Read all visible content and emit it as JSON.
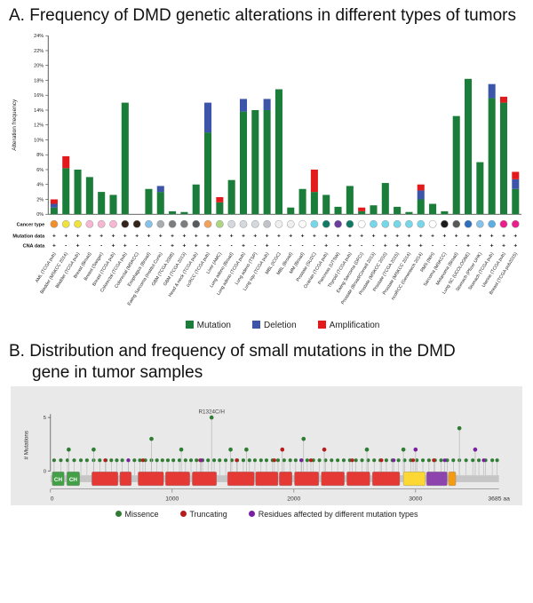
{
  "figure": {
    "panel_a_title": "A. Frequency of DMD genetic alterations in different types of tumors",
    "panel_b_title": "B. Distribution and frequency of small mutations in the DMD gene in tumor samples"
  },
  "chart_data": [
    {
      "id": "alteration-frequency",
      "type": "bar",
      "stacked": true,
      "ylabel": "Alteration frequency",
      "ylim": [
        0,
        24
      ],
      "ytick_step": 2,
      "ytick_suffix": "%",
      "row_labels": [
        "Cancer type",
        "Mutation data",
        "CNA data"
      ],
      "legend": [
        {
          "label": "Mutation",
          "color": "#1b7d3a"
        },
        {
          "label": "Deletion",
          "color": "#3c55a8"
        },
        {
          "label": "Amplification",
          "color": "#e31a1c"
        }
      ],
      "categories": [
        "AML (TCGA pub)",
        "Bladder (MSKCC 2014)",
        "Bladder (TCGA pub)",
        "Breast (Broad)",
        "Breast (Sanger)",
        "Breast (TCGA pub)",
        "Colorectal (TCGA pub)",
        "Colorectal (MSKCC)",
        "Esophagus (Broad)",
        "Ewing Sarcoma (Institut Curie)",
        "GBM (TCGA 2008)",
        "GBM (TCGA 2013)",
        "Head & neck (TCGA pub)",
        "ccRCC (TCGA pub)",
        "Liver (AMC)",
        "Lung adeno (Broad)",
        "Lung adeno (TCGA pub)",
        "Lung adeno (TSP)",
        "Lung squ (TCGA pub)",
        "MBL (ICGC)",
        "MBL (Broad)",
        "MM (Broad)",
        "Prostate (SU2C)",
        "Ovarian (TCGA pub)",
        "Pancreas (UTSW)",
        "Thyroid (TCGA pub)",
        "Ewing Sarcoma (DFCI)",
        "Prostate (Broad/Cornell 2013)",
        "Prostate (MSKCC 2010)",
        "Prostate (TCGA 2015)",
        "Prostate (MSKCC 2014)",
        "ncoRCC (Genentech 2014)",
        "RMS (NIH)",
        "Sarcoma (MSKCC)",
        "Melanoma (Broad)",
        "Lung SC (UCOLOGNE)",
        "Stomach (Pfizer UHK)",
        "Stomach (TCGA pub)",
        "Uterine (TCGA pub)",
        "Breast (TCGA pub2015)"
      ],
      "series": [
        {
          "name": "Mutation",
          "color": "#1b7d3a",
          "values": [
            0.9,
            6.2,
            6.0,
            5.0,
            3.0,
            2.6,
            15.0,
            0,
            3.4,
            3.0,
            0.4,
            0.3,
            4.0,
            11.0,
            1.6,
            4.6,
            13.8,
            14.0,
            14.0,
            16.8,
            0.9,
            3.4,
            3.0,
            2.6,
            1.0,
            3.8,
            0.4,
            1.2,
            4.2,
            1.0,
            0.3,
            2.0,
            1.4,
            0.4,
            13.2,
            18.2,
            7.0,
            15.6,
            15.0,
            3.4
          ]
        },
        {
          "name": "Deletion",
          "color": "#3c55a8",
          "values": [
            0.5,
            0,
            0,
            0,
            0,
            0,
            0,
            0,
            0,
            0.8,
            0,
            0,
            0,
            4.0,
            0,
            0,
            1.7,
            0,
            1.5,
            0,
            0,
            0,
            0,
            0,
            0,
            0,
            0,
            0,
            0,
            0,
            0,
            1.2,
            0,
            0,
            0,
            0,
            0,
            1.9,
            0,
            1.3
          ]
        },
        {
          "name": "Amplification",
          "color": "#e31a1c",
          "values": [
            0.6,
            1.6,
            0,
            0,
            0,
            0,
            0,
            0,
            0,
            0,
            0,
            0,
            0,
            0,
            0.7,
            0,
            0,
            0,
            0,
            0,
            0,
            0,
            3.0,
            0,
            0,
            0,
            0.5,
            0,
            0,
            0,
            0,
            0.8,
            0,
            0,
            0,
            0,
            0,
            0,
            0.8,
            1.0
          ]
        }
      ],
      "cancer_type_colors": [
        "#f28e2b",
        "#f0e23c",
        "#f0e23c",
        "#f7b6d2",
        "#f7b6d2",
        "#f7b6d2",
        "#33231a",
        "#33231a",
        "#85c1e9",
        "#a6acaf",
        "#7b7d7f",
        "#7b7d7f",
        "#565a5c",
        "#f1a15a",
        "#aed581",
        "#d5d8dc",
        "#d5d8dc",
        "#d5d8dc",
        "#c0c4c8",
        "#efefef",
        "#efefef",
        "#fafafa",
        "#76d7ea",
        "#117a65",
        "#6a3d9a",
        "#117a65",
        "#ffffff",
        "#76d7ea",
        "#76d7ea",
        "#76d7ea",
        "#76d7ea",
        "#76d7ea",
        "#ffffff",
        "#1b1b1b",
        "#585858",
        "#2e6fbd",
        "#85c1e9",
        "#5dade2",
        "#e91e8c",
        "#e91e8c"
      ],
      "mutation_data": [
        "+",
        "+",
        "+",
        "+",
        "+",
        "+",
        "+",
        "+",
        "+",
        "+",
        "+",
        "+",
        "+",
        "+",
        "+",
        "+",
        "+",
        "+",
        "+",
        "+",
        "+",
        "+",
        "+",
        "+",
        "+",
        "+",
        "+",
        "+",
        "+",
        "+",
        "+",
        "+",
        "+",
        "+",
        "+",
        "+",
        "+",
        "+",
        "+",
        "+"
      ],
      "cna_data": [
        "+",
        "-",
        "+",
        "-",
        "-",
        "+",
        "+",
        "-",
        "-",
        "-",
        "+",
        "+",
        "+",
        "+",
        "-",
        "-",
        "+",
        "-",
        "+",
        "-",
        "-",
        "-",
        "-",
        "+",
        "-",
        "+",
        "-",
        "-",
        "+",
        "+",
        "+",
        "+",
        "-",
        "-",
        "-",
        "+",
        "-",
        "+",
        "+",
        "+"
      ]
    },
    {
      "id": "dmd-lollipop",
      "type": "lollipop",
      "ylabel": "# Mutations",
      "ylim": [
        0,
        5
      ],
      "xmax": 3685,
      "xticks": [
        0,
        1000,
        2000,
        3000
      ],
      "x_end_label": "3685 aa",
      "annotation": {
        "label": "R1324C/H",
        "x": 1324,
        "count": 5
      },
      "domains": [
        {
          "start": 14,
          "end": 113,
          "label": "CH",
          "color": "#43a047"
        },
        {
          "start": 134,
          "end": 240,
          "label": "CH",
          "color": "#43a047"
        },
        {
          "start": 340,
          "end": 555,
          "label": "",
          "color": "#e53935"
        },
        {
          "start": 570,
          "end": 665,
          "label": "",
          "color": "#e53935"
        },
        {
          "start": 720,
          "end": 930,
          "label": "",
          "color": "#e53935"
        },
        {
          "start": 945,
          "end": 1145,
          "label": "",
          "color": "#e53935"
        },
        {
          "start": 1165,
          "end": 1365,
          "label": "",
          "color": "#e53935"
        },
        {
          "start": 1455,
          "end": 1675,
          "label": "",
          "color": "#e53935"
        },
        {
          "start": 1685,
          "end": 1870,
          "label": "",
          "color": "#e53935"
        },
        {
          "start": 1880,
          "end": 1985,
          "label": "",
          "color": "#e53935"
        },
        {
          "start": 2005,
          "end": 2205,
          "label": "",
          "color": "#e53935"
        },
        {
          "start": 2225,
          "end": 2415,
          "label": "",
          "color": "#e53935"
        },
        {
          "start": 2435,
          "end": 2625,
          "label": "",
          "color": "#e53935"
        },
        {
          "start": 2645,
          "end": 2870,
          "label": "",
          "color": "#e53935"
        },
        {
          "start": 2900,
          "end": 3080,
          "label": "",
          "color": "#fdd835"
        },
        {
          "start": 3090,
          "end": 3260,
          "label": "",
          "color": "#8e44ad"
        },
        {
          "start": 3270,
          "end": 3330,
          "label": "",
          "color": "#f39c12"
        }
      ],
      "points": [
        {
          "x": 150,
          "count": 2,
          "type": "missense"
        },
        {
          "x": 355,
          "count": 2,
          "type": "missense"
        },
        {
          "x": 830,
          "count": 3,
          "type": "missense"
        },
        {
          "x": 1075,
          "count": 2,
          "type": "missense"
        },
        {
          "x": 1324,
          "count": 5,
          "type": "missense"
        },
        {
          "x": 1480,
          "count": 2,
          "type": "missense"
        },
        {
          "x": 1610,
          "count": 2,
          "type": "missense"
        },
        {
          "x": 1905,
          "count": 2,
          "type": "truncating"
        },
        {
          "x": 2080,
          "count": 3,
          "type": "missense"
        },
        {
          "x": 2250,
          "count": 2,
          "type": "truncating"
        },
        {
          "x": 2600,
          "count": 2,
          "type": "missense"
        },
        {
          "x": 2900,
          "count": 2,
          "type": "missense"
        },
        {
          "x": 3000,
          "count": 2,
          "type": "multiple"
        },
        {
          "x": 3360,
          "count": 4,
          "type": "missense"
        },
        {
          "x": 3490,
          "count": 2,
          "type": "multiple"
        }
      ],
      "baseline": {
        "missense": [
          30,
          85,
          140,
          195,
          250,
          300,
          355,
          405,
          455,
          500,
          545,
          590,
          640,
          690,
          735,
          780,
          830,
          875,
          920,
          965,
          1010,
          1060,
          1110,
          1155,
          1200,
          1250,
          1295,
          1345,
          1390,
          1440,
          1490,
          1535,
          1585,
          1635,
          1680,
          1730,
          1775,
          1825,
          1870,
          1920,
          1970,
          2015,
          2065,
          2110,
          2160,
          2210,
          2260,
          2310,
          2360,
          2410,
          2460,
          2510,
          2560,
          2610,
          2660,
          2710,
          2760,
          2810,
          2860,
          2910,
          2960,
          3010,
          3060,
          3110,
          3160,
          3210,
          3260,
          3310,
          3360,
          3415,
          3470,
          3520,
          3575,
          3630,
          3670
        ],
        "truncating": [
          450,
          760,
          1230,
          1530,
          1840,
          2140,
          2480,
          2720,
          2980,
          3150
        ],
        "multiple": [
          640,
          1240,
          2060,
          2820,
          3240,
          3560
        ]
      },
      "legend": [
        {
          "label": "Missence",
          "color": "#2e7d32"
        },
        {
          "label": "Truncating",
          "color": "#b71c1c"
        },
        {
          "label": "Residues affected by different mutation types",
          "color": "#7b1fa2"
        }
      ]
    }
  ]
}
